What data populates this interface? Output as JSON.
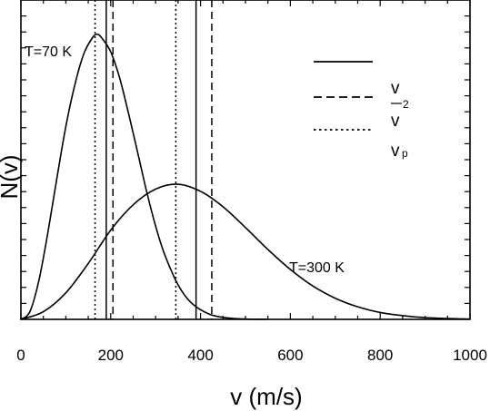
{
  "chart_data": {
    "type": "line",
    "xlabel": "v (m/s)",
    "ylabel": "N(v)",
    "xlim": [
      0,
      1000
    ],
    "x_ticks": [
      "0",
      "200",
      "400",
      "600",
      "800",
      "1000"
    ],
    "grid": false,
    "series": [
      {
        "name": "T=70 K",
        "x": [
          0,
          20,
          40,
          60,
          80,
          100,
          120,
          140,
          160,
          170,
          180,
          200,
          220,
          240,
          260,
          280,
          300,
          320,
          350,
          380,
          420,
          460,
          500,
          550
        ],
        "y": [
          0.0,
          0.027,
          0.136,
          0.304,
          0.494,
          0.676,
          0.822,
          0.931,
          0.989,
          1.0,
          0.987,
          0.938,
          0.846,
          0.72,
          0.585,
          0.448,
          0.327,
          0.228,
          0.121,
          0.057,
          0.018,
          0.005,
          0.001,
          0.0
        ]
      },
      {
        "name": "T=300 K",
        "x": [
          0,
          50,
          100,
          150,
          200,
          250,
          300,
          350,
          400,
          450,
          500,
          550,
          600,
          650,
          700,
          750,
          800,
          850,
          900,
          950,
          1000
        ],
        "y": [
          0.0,
          0.027,
          0.093,
          0.196,
          0.313,
          0.402,
          0.457,
          0.474,
          0.449,
          0.395,
          0.322,
          0.245,
          0.175,
          0.117,
          0.074,
          0.044,
          0.024,
          0.013,
          0.006,
          0.003,
          0.001
        ]
      }
    ],
    "reference_lines": [
      {
        "x": 165,
        "style": "dotted"
      },
      {
        "x": 190,
        "style": "solid"
      },
      {
        "x": 205,
        "style": "dashed"
      },
      {
        "x": 345,
        "style": "dotted"
      },
      {
        "x": 390,
        "style": "solid"
      },
      {
        "x": 425,
        "style": "dashed"
      }
    ],
    "legend": {
      "placement": "top-right",
      "entries": [
        {
          "style": "solid",
          "label": ""
        },
        {
          "style": "dashed",
          "label": "v",
          "sub": "2"
        },
        {
          "style": "dotted",
          "label": "v"
        }
      ],
      "extra_label": "v",
      "extra_sub": "p"
    }
  }
}
